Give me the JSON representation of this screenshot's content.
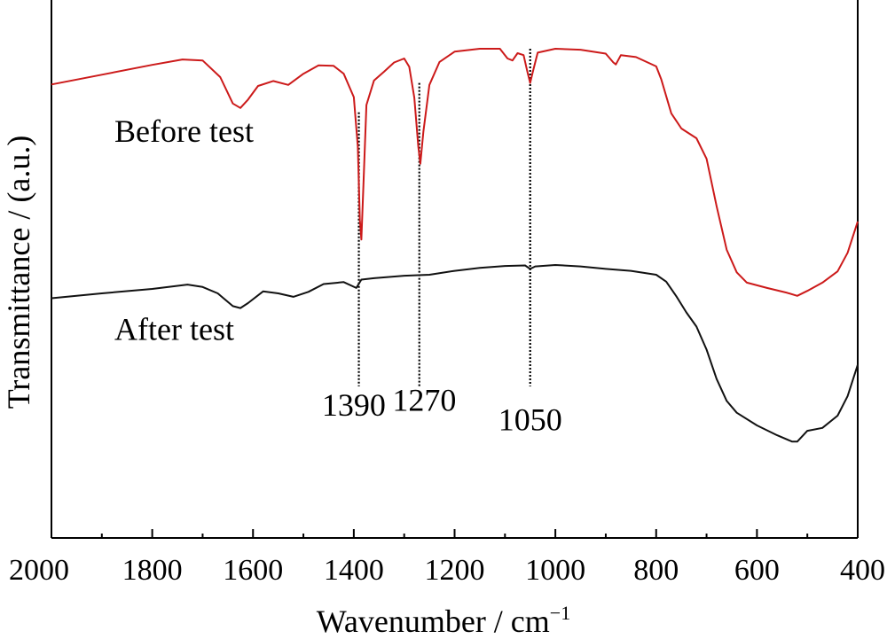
{
  "chart_data": {
    "type": "line",
    "title": "",
    "xlabel": "Wavenumber / cm",
    "xlabel_sup": "−1",
    "ylabel": "Transmittance / (a.u.)",
    "xlim": [
      2000,
      400
    ],
    "x_reversed": true,
    "ylim": [
      0,
      100
    ],
    "y_ticks_shown": false,
    "grid": false,
    "x_ticks": [
      2000,
      1800,
      1600,
      1400,
      1200,
      1000,
      800,
      600,
      400
    ],
    "x_tick_labels": [
      "2000",
      "1800",
      "1600",
      "1400",
      "1200",
      "1000",
      "800",
      "600",
      "400"
    ],
    "series": [
      {
        "name": "Before test",
        "color": "#cc1a1a",
        "points": [
          [
            2000,
            92.7
          ],
          [
            1900,
            94.7
          ],
          [
            1800,
            96.7
          ],
          [
            1740,
            97.8
          ],
          [
            1700,
            97.6
          ],
          [
            1665,
            94.2
          ],
          [
            1640,
            88.8
          ],
          [
            1625,
            87.9
          ],
          [
            1610,
            89.6
          ],
          [
            1590,
            92.4
          ],
          [
            1560,
            93.4
          ],
          [
            1530,
            92.6
          ],
          [
            1500,
            94.9
          ],
          [
            1470,
            96.6
          ],
          [
            1440,
            96.5
          ],
          [
            1420,
            94.9
          ],
          [
            1400,
            90.1
          ],
          [
            1392,
            80.0
          ],
          [
            1388,
            65.0
          ],
          [
            1385,
            61.0
          ],
          [
            1381,
            72.0
          ],
          [
            1375,
            88.5
          ],
          [
            1360,
            93.5
          ],
          [
            1340,
            95.3
          ],
          [
            1320,
            97.2
          ],
          [
            1300,
            98.0
          ],
          [
            1290,
            96.3
          ],
          [
            1280,
            90.0
          ],
          [
            1272,
            80.0
          ],
          [
            1268,
            76.5
          ],
          [
            1262,
            83.0
          ],
          [
            1250,
            92.6
          ],
          [
            1230,
            97.3
          ],
          [
            1200,
            99.4
          ],
          [
            1150,
            100.0
          ],
          [
            1110,
            100.0
          ],
          [
            1095,
            98.0
          ],
          [
            1085,
            97.6
          ],
          [
            1075,
            99.1
          ],
          [
            1063,
            98.7
          ],
          [
            1056,
            95.5
          ],
          [
            1050,
            93.0
          ],
          [
            1045,
            95.2
          ],
          [
            1035,
            99.2
          ],
          [
            1000,
            100.0
          ],
          [
            950,
            99.8
          ],
          [
            900,
            99.0
          ],
          [
            885,
            97.2
          ],
          [
            880,
            96.8
          ],
          [
            870,
            98.7
          ],
          [
            840,
            98.3
          ],
          [
            800,
            96.4
          ],
          [
            790,
            93.8
          ],
          [
            770,
            86.8
          ],
          [
            750,
            83.7
          ],
          [
            720,
            81.7
          ],
          [
            700,
            77.5
          ],
          [
            680,
            67.8
          ],
          [
            660,
            58.9
          ],
          [
            640,
            54.3
          ],
          [
            620,
            52.2
          ],
          [
            580,
            51.1
          ],
          [
            540,
            50.1
          ],
          [
            520,
            49.5
          ],
          [
            500,
            50.5
          ],
          [
            470,
            52.2
          ],
          [
            440,
            54.5
          ],
          [
            420,
            58.3
          ],
          [
            400,
            64.7
          ]
        ]
      },
      {
        "name": "After test",
        "color": "#111111",
        "points": [
          [
            2000,
            49.0
          ],
          [
            1900,
            50.0
          ],
          [
            1800,
            50.9
          ],
          [
            1730,
            51.8
          ],
          [
            1700,
            51.3
          ],
          [
            1670,
            50.0
          ],
          [
            1640,
            47.4
          ],
          [
            1625,
            47.0
          ],
          [
            1610,
            48.0
          ],
          [
            1580,
            50.4
          ],
          [
            1550,
            50.0
          ],
          [
            1520,
            49.3
          ],
          [
            1490,
            50.3
          ],
          [
            1460,
            51.9
          ],
          [
            1420,
            52.3
          ],
          [
            1395,
            51.1
          ],
          [
            1385,
            52.8
          ],
          [
            1360,
            53.1
          ],
          [
            1300,
            53.6
          ],
          [
            1250,
            53.8
          ],
          [
            1200,
            54.6
          ],
          [
            1150,
            55.2
          ],
          [
            1100,
            55.6
          ],
          [
            1060,
            55.7
          ],
          [
            1050,
            55.0
          ],
          [
            1040,
            55.5
          ],
          [
            1000,
            55.8
          ],
          [
            950,
            55.5
          ],
          [
            900,
            55.0
          ],
          [
            850,
            54.6
          ],
          [
            800,
            53.8
          ],
          [
            780,
            52.4
          ],
          [
            760,
            49.4
          ],
          [
            740,
            46.1
          ],
          [
            720,
            43.2
          ],
          [
            700,
            38.5
          ],
          [
            680,
            32.5
          ],
          [
            660,
            28.0
          ],
          [
            640,
            25.6
          ],
          [
            600,
            23.0
          ],
          [
            560,
            21.0
          ],
          [
            530,
            19.7
          ],
          [
            520,
            19.7
          ],
          [
            500,
            21.9
          ],
          [
            470,
            22.5
          ],
          [
            440,
            25.0
          ],
          [
            420,
            29.0
          ],
          [
            400,
            35.4
          ]
        ]
      }
    ],
    "annotations": [
      {
        "text": "Before test",
        "x": 1875,
        "y": 81.0
      },
      {
        "text": "After test",
        "x": 1875,
        "y": 40.5
      }
    ],
    "peak_markers": [
      {
        "x": 1390,
        "label": "1390",
        "label_x": 1400,
        "y_top": 87.0,
        "y_bottom": 31.0,
        "label_y": 25.0
      },
      {
        "x": 1270,
        "label": "1270",
        "label_x": 1260,
        "y_top": 93.0,
        "y_bottom": 31.0,
        "label_y": 26.0
      },
      {
        "x": 1050,
        "label": "1050",
        "label_x": 1050,
        "y_top": 100.0,
        "y_bottom": 31.0,
        "label_y": 22.0
      }
    ]
  }
}
